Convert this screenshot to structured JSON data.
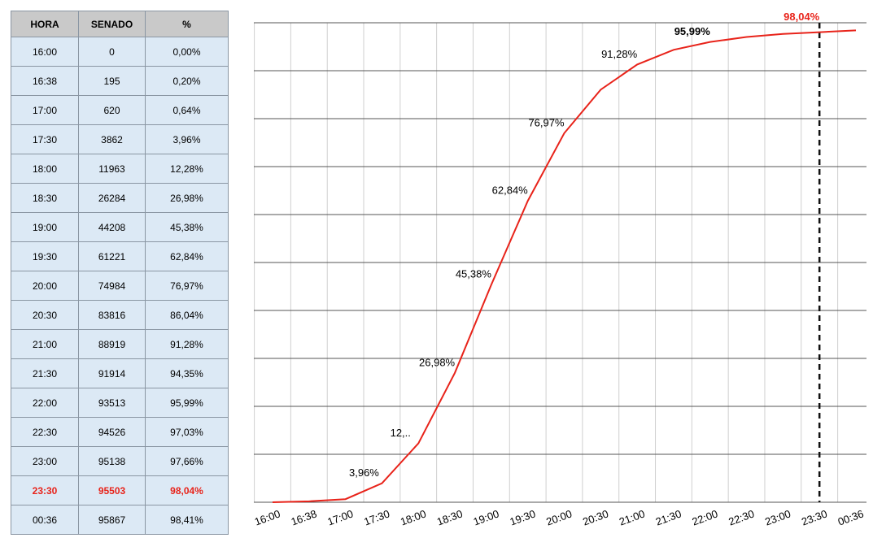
{
  "table": {
    "header": [
      "HORA",
      "SENADO",
      "%"
    ],
    "rows": [
      [
        "16:00",
        "0",
        "0,00%"
      ],
      [
        "16:38",
        "195",
        "0,20%"
      ],
      [
        "17:00",
        "620",
        "0,64%"
      ],
      [
        "17:30",
        "3862",
        "3,96%"
      ],
      [
        "18:00",
        "11963",
        "12,28%"
      ],
      [
        "18:30",
        "26284",
        "26,98%"
      ],
      [
        "19:00",
        "44208",
        "45,38%"
      ],
      [
        "19:30",
        "61221",
        "62,84%"
      ],
      [
        "20:00",
        "74984",
        "76,97%"
      ],
      [
        "20:30",
        "83816",
        "86,04%"
      ],
      [
        "21:00",
        "88919",
        "91,28%"
      ],
      [
        "21:30",
        "91914",
        "94,35%"
      ],
      [
        "22:00",
        "93513",
        "95,99%"
      ],
      [
        "22:30",
        "94526",
        "97,03%"
      ],
      [
        "23:00",
        "95138",
        "97,66%"
      ],
      [
        "23:30",
        "95503",
        "98,04%"
      ],
      [
        "00:36",
        "95867",
        "98,41%"
      ]
    ],
    "highlight_row": 15,
    "highlight_color": "#e8231a"
  },
  "chart_data": {
    "type": "line",
    "categories": [
      "16:00",
      "16:38",
      "17:00",
      "17:30",
      "18:00",
      "18:30",
      "19:00",
      "19:30",
      "20:00",
      "20:30",
      "21:00",
      "21:30",
      "22:00",
      "22:30",
      "23:00",
      "23:30",
      "00:36"
    ],
    "values": [
      0,
      0.2,
      0.64,
      3.96,
      12.28,
      26.98,
      45.38,
      62.84,
      76.97,
      86.04,
      91.28,
      94.35,
      95.99,
      97.03,
      97.66,
      98.04,
      98.41
    ],
    "value_labels": [
      null,
      null,
      null,
      "3,96%",
      "12,..",
      "26,98%",
      "45,38%",
      "62,84%",
      "76,97%",
      null,
      "91,28%",
      null,
      "95,99%",
      null,
      null,
      "98,04%",
      null
    ],
    "bold_label": 12,
    "highlight_index": 15,
    "highlight_color": "#e8231a",
    "color": "#e8231a",
    "ylim": [
      0,
      100
    ],
    "yticks": [
      0,
      10,
      20,
      30,
      40,
      50,
      60,
      70,
      80,
      90,
      100
    ],
    "grid": true,
    "dashed_line_index": 15
  }
}
